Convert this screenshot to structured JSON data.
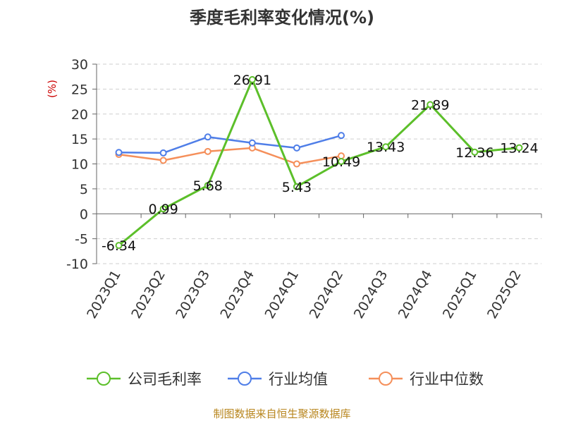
{
  "chart_data": {
    "type": "line",
    "title": "季度毛利率变化情况(%)",
    "xlabel": "",
    "ylabel": "(%)",
    "ylim": [
      -10,
      30
    ],
    "yticks": [
      -10,
      -5,
      0,
      5,
      10,
      15,
      20,
      25,
      30
    ],
    "grid": "horizontal dashed",
    "legend_position": "bottom",
    "categories": [
      "2023Q1",
      "2023Q2",
      "2023Q3",
      "2023Q4",
      "2024Q1",
      "2024Q2",
      "2024Q3",
      "2024Q4",
      "2025Q1",
      "2025Q2"
    ],
    "series": [
      {
        "name": "公司毛利率",
        "color": "#5cbf2a",
        "values": [
          -6.34,
          0.99,
          5.68,
          26.91,
          5.43,
          10.49,
          13.43,
          21.89,
          12.36,
          13.24
        ],
        "labels": [
          "-6.34",
          "0.99",
          "5.68",
          "26.91",
          "5.43",
          "10.49",
          "13.43",
          "21.89",
          "12.36",
          "13.24"
        ]
      },
      {
        "name": "行业均值",
        "color": "#4f7ee8",
        "values": [
          12.3,
          12.2,
          15.4,
          14.2,
          13.2,
          15.7,
          null,
          null,
          null,
          null
        ]
      },
      {
        "name": "行业中位数",
        "color": "#f58f5a",
        "values": [
          11.9,
          10.7,
          12.5,
          13.2,
          10.0,
          11.6,
          null,
          null,
          null,
          null
        ]
      }
    ]
  },
  "source": "制图数据来自恒生聚源数据库"
}
